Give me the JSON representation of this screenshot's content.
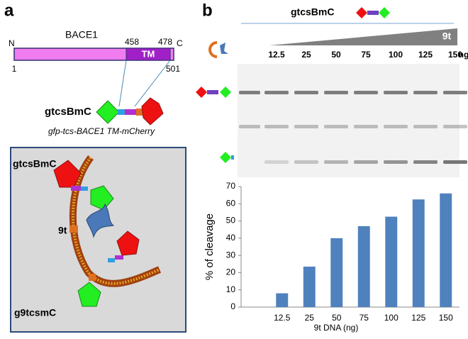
{
  "panel_a": {
    "label": "a",
    "protein": "BACE1",
    "n_term": "N",
    "c_term": "C",
    "start": "1",
    "tm_start": "458",
    "tm_end": "478",
    "end": "501",
    "tm": "TM",
    "construct": "gtcsBmC",
    "construct_desc": "gfp-tcs-BACE1 TM-mCherry",
    "inset_top": "gtcsBmC",
    "inset_enzyme": "9t",
    "inset_bottom": "g9tcsmC"
  },
  "panel_b": {
    "label": "b",
    "construct": "gtcsBmC",
    "enzyme": "9t",
    "lanes": [
      12.5,
      25,
      50,
      75,
      100,
      125,
      150
    ],
    "unit": "ng"
  },
  "chart_data": {
    "type": "bar",
    "categories": [
      null,
      "12.5",
      "25",
      "50",
      "75",
      "100",
      "125",
      "150"
    ],
    "values": [
      0,
      8,
      23.5,
      40,
      47,
      52.5,
      62.5,
      66
    ],
    "color": "#4f81bd",
    "ylabel": "% of cleavage",
    "xlabel": "9t DNA (ng)",
    "ylim": [
      0,
      70
    ],
    "yticks": [
      0,
      10,
      20,
      30,
      40,
      50,
      60,
      70
    ]
  }
}
